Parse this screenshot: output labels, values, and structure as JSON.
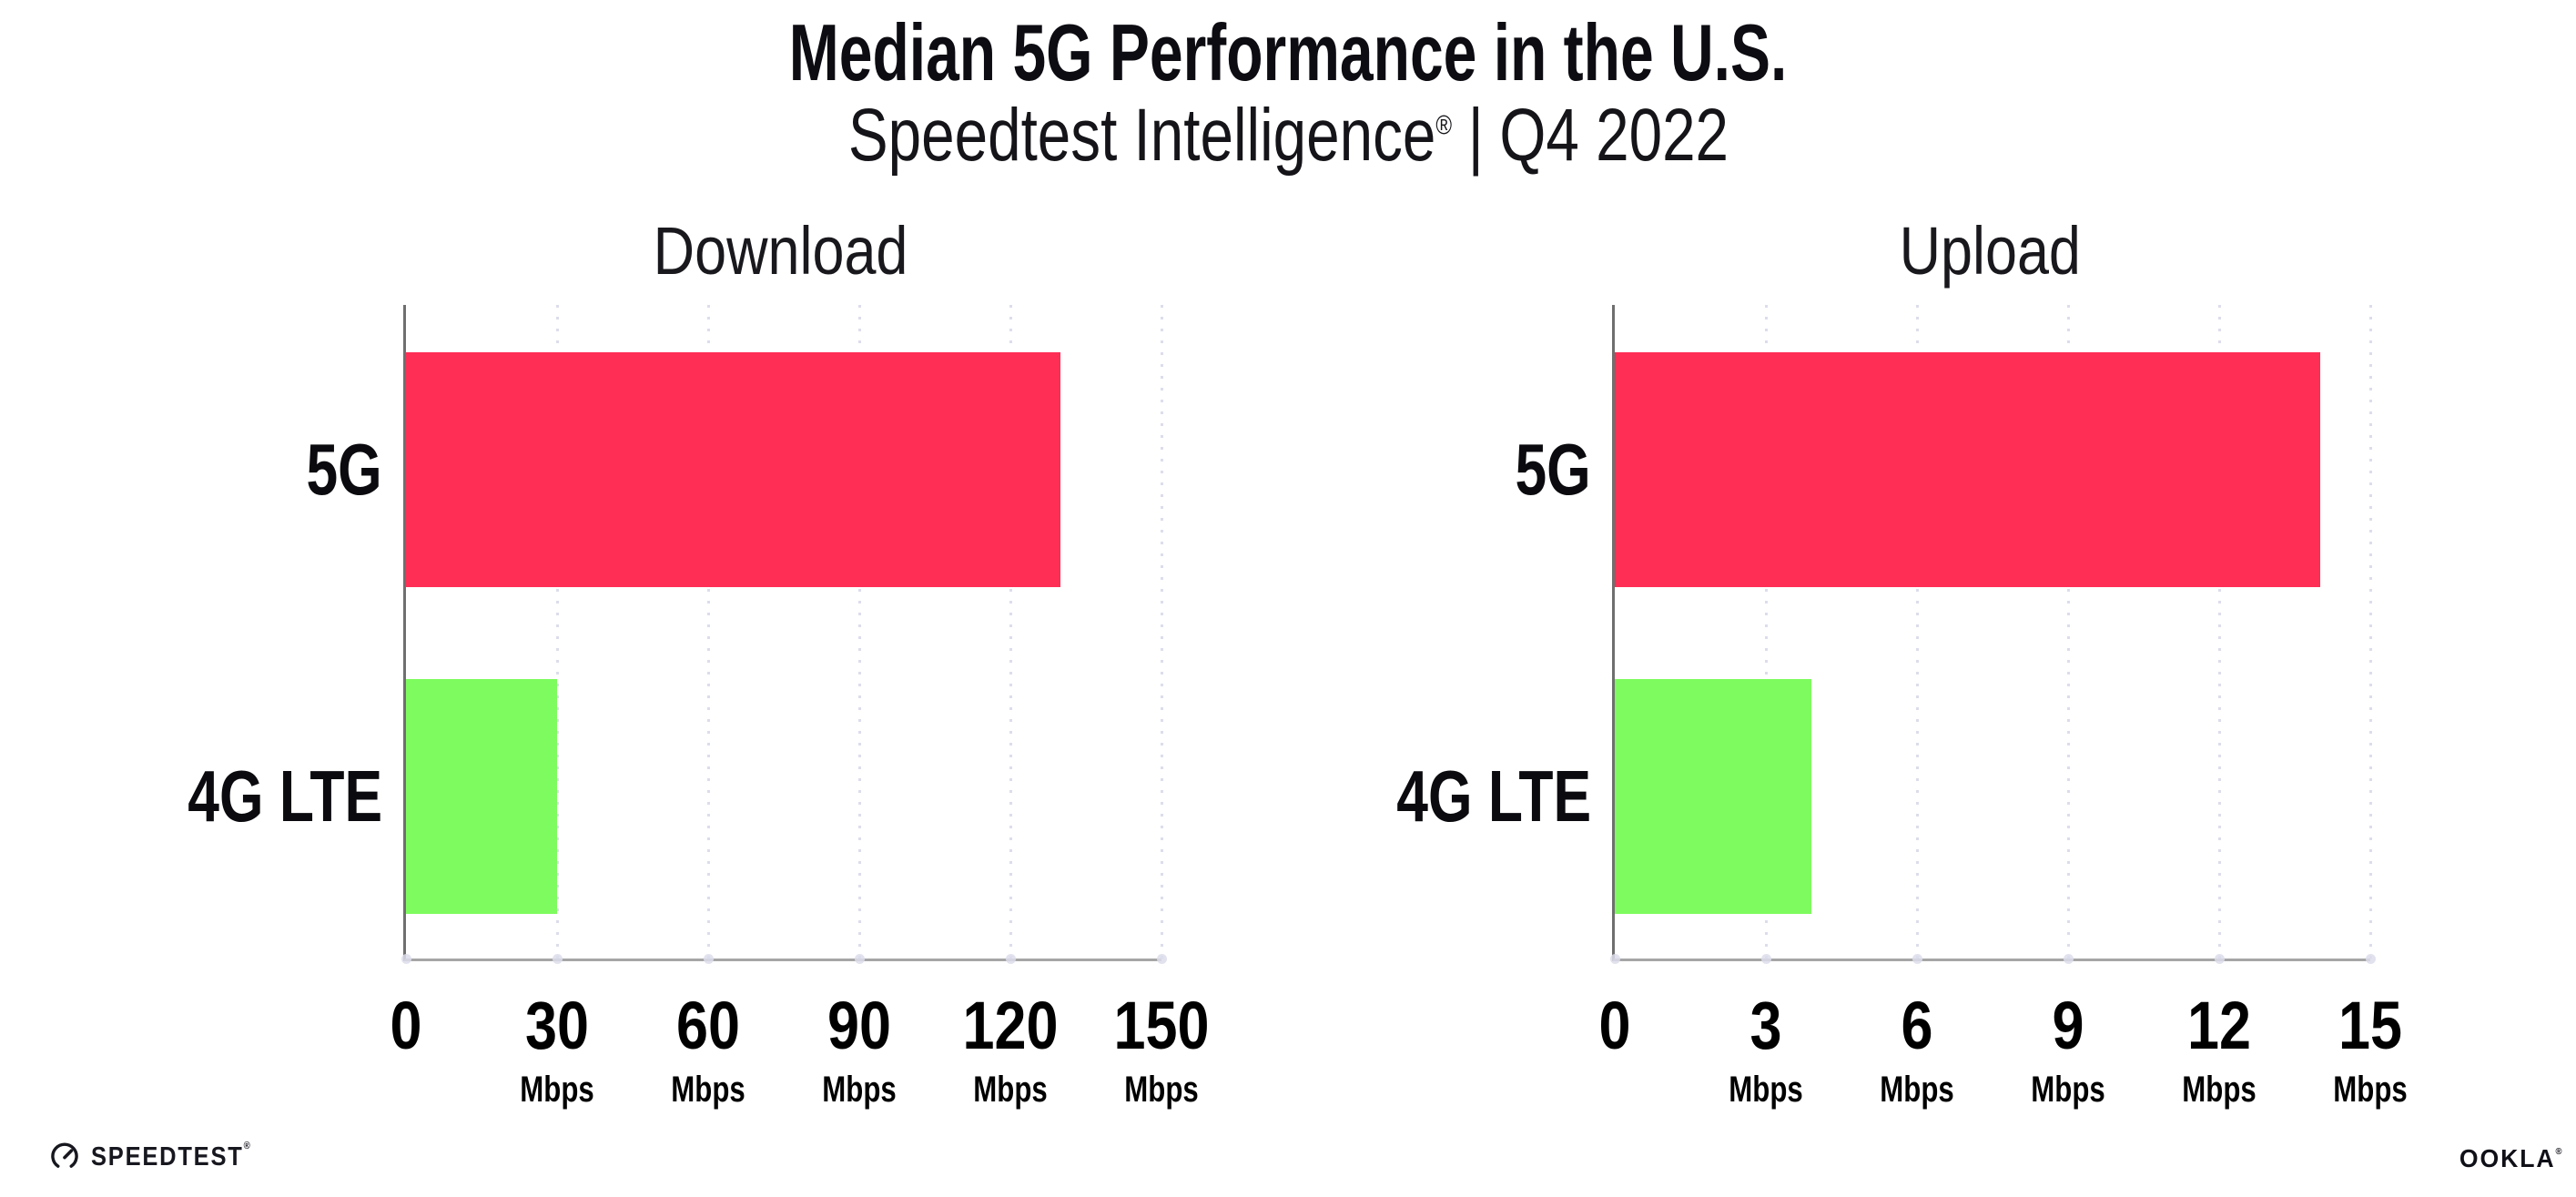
{
  "header": {
    "title": "Median 5G Performance in the U.S.",
    "subtitle_brand": "Speedtest Intelligence",
    "subtitle_reg": "®",
    "subtitle_divider": "|",
    "subtitle_period": "Q4 2022"
  },
  "chart_data": [
    {
      "type": "bar",
      "orientation": "horizontal",
      "title": "Download",
      "categories": [
        "5G",
        "4G LTE"
      ],
      "values": [
        130,
        30
      ],
      "xlim": [
        0,
        150
      ],
      "xticks": [
        0,
        30,
        60,
        90,
        120,
        150
      ],
      "tick_unit": "Mbps",
      "bar_colors": [
        "#ff2e55",
        "#7efc5f"
      ],
      "grid": "dotted-vertical",
      "legend": "none"
    },
    {
      "type": "bar",
      "orientation": "horizontal",
      "title": "Upload",
      "categories": [
        "5G",
        "4G LTE"
      ],
      "values": [
        14,
        3.9
      ],
      "xlim": [
        0,
        15
      ],
      "xticks": [
        0,
        3,
        6,
        9,
        12,
        15
      ],
      "tick_unit": "Mbps",
      "bar_colors": [
        "#ff2e55",
        "#7efc5f"
      ],
      "grid": "dotted-vertical",
      "legend": "none"
    }
  ],
  "footer": {
    "speedtest_label": "SPEEDTEST",
    "speedtest_reg": "®",
    "ookla_label": "OOKLA",
    "ookla_reg": "®"
  },
  "colors": {
    "bar_5g": "#ff2e55",
    "bar_4g_lte": "#7efc5f",
    "gridline": "#dcddeb",
    "axis_left": "#6f6f6f",
    "axis_bottom": "#a6a6a6",
    "text": "#0c0c12"
  }
}
